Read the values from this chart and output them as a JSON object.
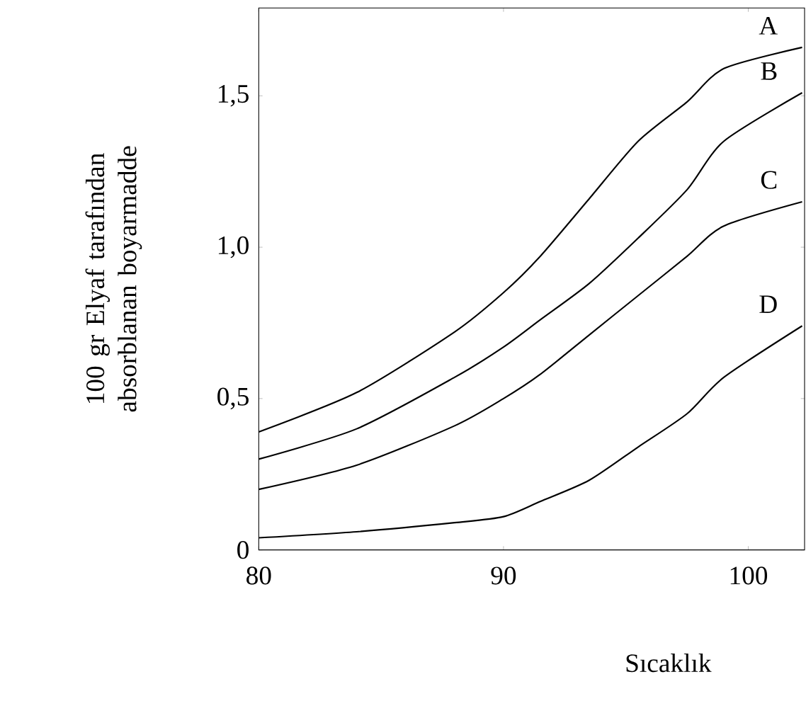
{
  "chart_data": {
    "type": "line",
    "xlabel": "Sıcaklık",
    "ylabel": "100 gr Elyaf tarafından absorblanan boyarmadde",
    "x": [
      80,
      84,
      88,
      90,
      91.5,
      93.5,
      95.5,
      97.5,
      99,
      102.2
    ],
    "series": [
      {
        "name": "A",
        "color": "#000000",
        "values": [
          0.39,
          0.52,
          0.72,
          0.85,
          0.97,
          1.16,
          1.35,
          1.48,
          1.59,
          1.66
        ]
      },
      {
        "name": "B",
        "color": "#000000",
        "values": [
          0.3,
          0.4,
          0.57,
          0.67,
          0.76,
          0.88,
          1.03,
          1.19,
          1.35,
          1.51
        ]
      },
      {
        "name": "C",
        "color": "#000000",
        "values": [
          0.2,
          0.28,
          0.41,
          0.5,
          0.58,
          0.71,
          0.84,
          0.97,
          1.07,
          1.15
        ]
      },
      {
        "name": "D",
        "color": "#000000",
        "values": [
          0.04,
          0.06,
          0.09,
          0.11,
          0.16,
          0.23,
          0.34,
          0.45,
          0.57,
          0.74
        ]
      }
    ],
    "xlim": [
      80,
      102.3
    ],
    "ylim": [
      0,
      1.79
    ],
    "xticks": [
      80,
      90,
      100
    ],
    "yticks": [
      0,
      {
        "value": 0.5,
        "label": "0,5"
      },
      {
        "value": 1.0,
        "label": "1,0"
      },
      {
        "value": 1.5,
        "label": "1,5"
      }
    ],
    "marker": "none",
    "line_style": "solid"
  }
}
